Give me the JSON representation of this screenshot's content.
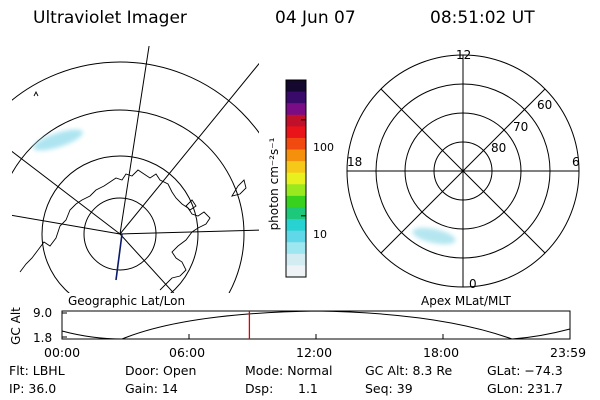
{
  "header": {
    "title": "Ultraviolet Imager",
    "date": "04 Jun 07",
    "time": "08:51:02 UT"
  },
  "geographic_panel": {
    "label": "Geographic Lat/Lon"
  },
  "apex_panel": {
    "label": "Apex MLat/MLT",
    "mlt_labels": {
      "top": "12",
      "left": "18",
      "right": "6",
      "bottom": "0"
    },
    "mlat_labels": [
      "60",
      "70",
      "80"
    ]
  },
  "colorbar": {
    "unit_label": "photon cm⁻²s⁻¹",
    "ticks": [
      {
        "value": 100,
        "label": "100"
      },
      {
        "value": 10,
        "label": "10"
      }
    ],
    "range": [
      2.3,
      260
    ],
    "colors_top_to_bottom": [
      "#14082e",
      "#3a0a6a",
      "#7a0d86",
      "#c0102a",
      "#e8141a",
      "#f04a10",
      "#f5900c",
      "#f5c81a",
      "#e8f020",
      "#9ae81e",
      "#38d21e",
      "#1ec87a",
      "#28d2d2",
      "#60d8ea",
      "#9ee6f0",
      "#d2ecf2",
      "#eef4f6"
    ]
  },
  "altitude_plot": {
    "axis_label": "GC Alt",
    "y_ticks": [
      "9.0",
      "1.8"
    ],
    "x_ticks": [
      "00:00",
      "06:00",
      "12:00",
      "18:00",
      "23:59"
    ],
    "current_time_fraction": 0.3688,
    "marker_color": "#e00000"
  },
  "status": {
    "flt": "Flt: LBHL",
    "door": "Door: Open",
    "mode": "Mode: Normal",
    "gc_alt": "GC Alt: 8.3 Re",
    "glat": "GLat: −74.3",
    "ip": "IP: 36.0",
    "gain": "Gain: 14",
    "dsp": "Dsp:",
    "dsp_value": "1.1",
    "seq": "Seq: 39",
    "glon": "GLon: 231.7"
  }
}
